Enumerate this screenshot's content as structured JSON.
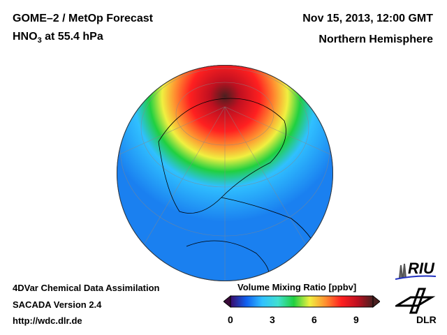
{
  "header": {
    "title": "GOME–2 / MetOp Forecast",
    "species": "HNO",
    "species_sub": "3",
    "level": " at 55.4 hPa",
    "datetime": "Nov 15, 2013, 12:00 GMT",
    "region": "Northern Hemisphere"
  },
  "footer": {
    "line1": "4DVar Chemical Data Assimilation",
    "line2": "SACADA Version 2.4",
    "url": "http://wdc.dlr.de"
  },
  "colorbar": {
    "title": "Volume Mixing Ratio [ppbv]",
    "ticks": [
      "0",
      "3",
      "6",
      "9"
    ],
    "colors": [
      "#3a0a6a",
      "#1060f0",
      "#30c0ff",
      "#40e0d0",
      "#20d040",
      "#f0f040",
      "#ff9030",
      "#ff2020",
      "#c01020",
      "#4a2020"
    ]
  },
  "logos": {
    "riu": "RIU",
    "dlr": "DLR"
  }
}
